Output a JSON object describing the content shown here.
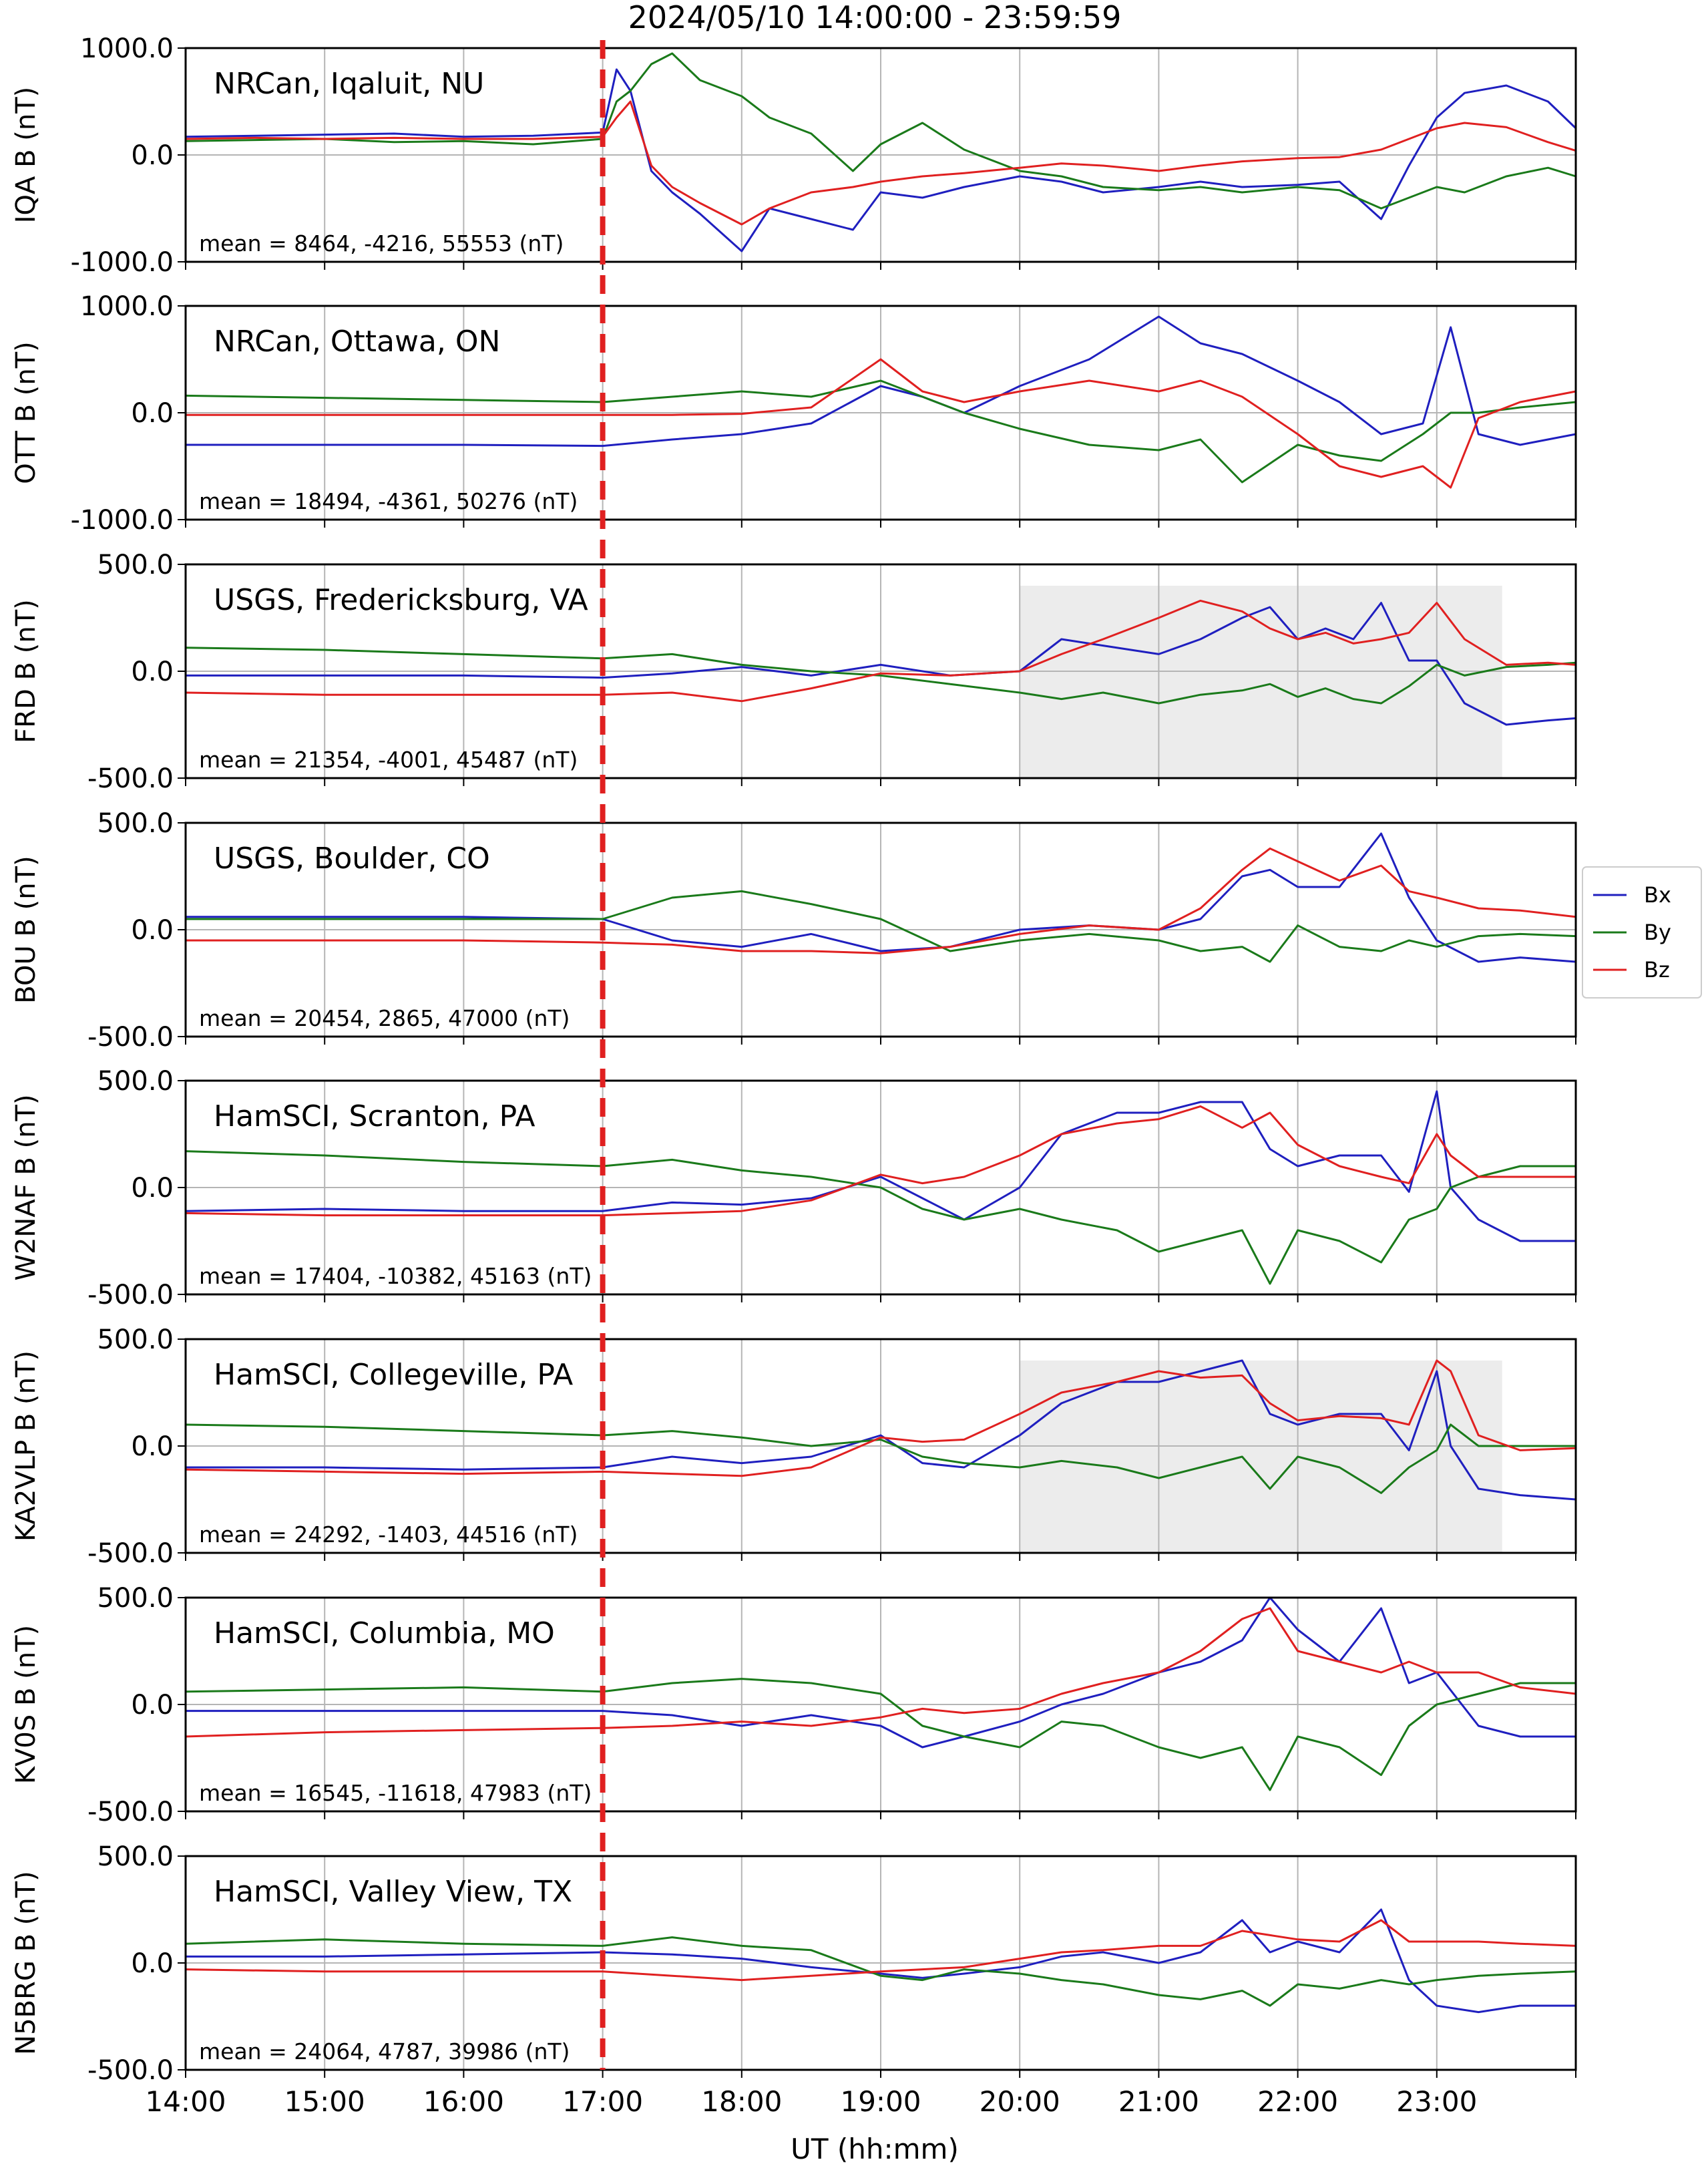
{
  "figure": {
    "title": "2024/05/10 14:00:00 - 23:59:59",
    "xlabel": "UT (hh:mm)",
    "x_tick_labels": [
      "14:00",
      "15:00",
      "16:00",
      "17:00",
      "18:00",
      "19:00",
      "20:00",
      "21:00",
      "22:00",
      "23:00"
    ]
  },
  "legend": {
    "placement": "right-middle",
    "entries": [
      {
        "label": "Bx",
        "color": "#1f1fbf"
      },
      {
        "label": "By",
        "color": "#1a7a1a"
      },
      {
        "label": "Bz",
        "color": "#e02020"
      }
    ]
  },
  "event_marker": {
    "time": "17:00",
    "color": "#e02020",
    "style": "dashed"
  },
  "chart_data": [
    {
      "type": "line",
      "station": "NRCan, Iqaluit, NU",
      "ylabel": "IQA B (nT)",
      "ylim": [
        -1000,
        1000
      ],
      "yticks": [
        "1000.0",
        "0.0",
        "-1000.0"
      ],
      "mean_text": "mean = 8464, -4216, 55553 (nT)",
      "shaded": null,
      "x": [
        14,
        14.5,
        15,
        15.5,
        16,
        16.5,
        17,
        17.1,
        17.2,
        17.35,
        17.5,
        17.7,
        18,
        18.2,
        18.5,
        18.8,
        19,
        19.3,
        19.6,
        20,
        20.3,
        20.6,
        21,
        21.3,
        21.6,
        22,
        22.3,
        22.6,
        22.8,
        23,
        23.2,
        23.5,
        23.8,
        24
      ],
      "series": [
        {
          "name": "Bx",
          "values": [
            170,
            180,
            190,
            200,
            170,
            180,
            210,
            800,
            600,
            -150,
            -350,
            -550,
            -900,
            -500,
            -600,
            -700,
            -350,
            -400,
            -300,
            -200,
            -250,
            -350,
            -300,
            -250,
            -300,
            -280,
            -250,
            -600,
            -100,
            350,
            580,
            650,
            500,
            250
          ]
        },
        {
          "name": "By",
          "values": [
            130,
            140,
            150,
            120,
            130,
            100,
            150,
            500,
            600,
            850,
            950,
            700,
            550,
            350,
            200,
            -150,
            100,
            300,
            50,
            -150,
            -200,
            -300,
            -330,
            -300,
            -350,
            -300,
            -330,
            -500,
            -400,
            -300,
            -350,
            -200,
            -120,
            -200
          ]
        },
        {
          "name": "Bz",
          "values": [
            150,
            160,
            150,
            160,
            150,
            150,
            170,
            350,
            500,
            -100,
            -300,
            -450,
            -650,
            -500,
            -350,
            -300,
            -250,
            -200,
            -170,
            -120,
            -80,
            -100,
            -150,
            -100,
            -60,
            -30,
            -20,
            50,
            150,
            250,
            300,
            260,
            120,
            40
          ]
        }
      ]
    },
    {
      "type": "line",
      "station": "NRCan, Ottawa, ON",
      "ylabel": "OTT B (nT)",
      "ylim": [
        -1000,
        1000
      ],
      "yticks": [
        "1000.0",
        "0.0",
        "-1000.0"
      ],
      "mean_text": "mean = 18494, -4361, 50276 (nT)",
      "shaded": null,
      "x": [
        14,
        15,
        16,
        17,
        17.5,
        18,
        18.5,
        19,
        19.3,
        19.6,
        20,
        20.5,
        21,
        21.3,
        21.6,
        22,
        22.3,
        22.6,
        22.9,
        23.1,
        23.3,
        23.6,
        24
      ],
      "series": [
        {
          "name": "Bx",
          "values": [
            -300,
            -300,
            -300,
            -310,
            -250,
            -200,
            -100,
            250,
            150,
            0,
            250,
            500,
            900,
            650,
            550,
            300,
            100,
            -200,
            -100,
            800,
            -200,
            -300,
            -200
          ]
        },
        {
          "name": "By",
          "values": [
            160,
            140,
            120,
            100,
            150,
            200,
            150,
            300,
            150,
            0,
            -150,
            -300,
            -350,
            -250,
            -650,
            -300,
            -400,
            -450,
            -200,
            0,
            0,
            50,
            100
          ]
        },
        {
          "name": "Bz",
          "values": [
            -20,
            -20,
            -20,
            -20,
            -20,
            -10,
            50,
            500,
            200,
            100,
            200,
            300,
            200,
            300,
            150,
            -200,
            -500,
            -600,
            -500,
            -700,
            -50,
            100,
            200
          ]
        }
      ]
    },
    {
      "type": "line",
      "station": "USGS, Fredericksburg, VA",
      "ylabel": "FRD B (nT)",
      "ylim": [
        -500,
        500
      ],
      "yticks": [
        "500.0",
        "0.0",
        "-500.0"
      ],
      "mean_text": "mean = 21354, -4001, 45487 (nT)",
      "shaded": [
        20,
        23.47
      ],
      "x": [
        14,
        15,
        16,
        17,
        17.5,
        18,
        18.5,
        19,
        19.5,
        20,
        20.3,
        20.6,
        21,
        21.3,
        21.6,
        21.8,
        22,
        22.2,
        22.4,
        22.6,
        22.8,
        23,
        23.2,
        23.5,
        23.8,
        24
      ],
      "series": [
        {
          "name": "Bx",
          "values": [
            -20,
            -20,
            -20,
            -30,
            -10,
            20,
            -20,
            30,
            -20,
            0,
            150,
            120,
            80,
            150,
            250,
            300,
            150,
            200,
            150,
            320,
            50,
            50,
            -150,
            -250,
            -230,
            -220
          ]
        },
        {
          "name": "By",
          "values": [
            110,
            100,
            80,
            60,
            80,
            30,
            0,
            -20,
            -60,
            -100,
            -130,
            -100,
            -150,
            -110,
            -90,
            -60,
            -120,
            -80,
            -130,
            -150,
            -70,
            30,
            -20,
            20,
            30,
            40
          ]
        },
        {
          "name": "Bz",
          "values": [
            -100,
            -110,
            -110,
            -110,
            -100,
            -140,
            -80,
            -10,
            -20,
            0,
            80,
            150,
            250,
            330,
            280,
            200,
            150,
            180,
            130,
            150,
            180,
            320,
            150,
            30,
            40,
            30
          ]
        }
      ]
    },
    {
      "type": "line",
      "station": "USGS, Boulder, CO",
      "ylabel": "BOU B (nT)",
      "ylim": [
        -500,
        500
      ],
      "yticks": [
        "500.0",
        "0.0",
        "-500.0"
      ],
      "mean_text": "mean = 20454, 2865, 47000 (nT)",
      "shaded": null,
      "x": [
        14,
        15,
        16,
        17,
        17.5,
        18,
        18.5,
        19,
        19.5,
        20,
        20.5,
        21,
        21.3,
        21.6,
        21.8,
        22,
        22.3,
        22.6,
        22.8,
        23,
        23.3,
        23.6,
        24
      ],
      "series": [
        {
          "name": "Bx",
          "values": [
            60,
            60,
            60,
            50,
            -50,
            -80,
            -20,
            -100,
            -80,
            0,
            20,
            0,
            50,
            250,
            280,
            200,
            200,
            450,
            150,
            -50,
            -150,
            -130,
            -150
          ]
        },
        {
          "name": "By",
          "values": [
            50,
            50,
            50,
            50,
            150,
            180,
            120,
            50,
            -100,
            -50,
            -20,
            -50,
            -100,
            -80,
            -150,
            20,
            -80,
            -100,
            -50,
            -80,
            -30,
            -20,
            -30
          ]
        },
        {
          "name": "Bz",
          "values": [
            -50,
            -50,
            -50,
            -60,
            -70,
            -100,
            -100,
            -110,
            -80,
            -20,
            20,
            0,
            100,
            280,
            380,
            320,
            230,
            300,
            180,
            150,
            100,
            90,
            60
          ]
        }
      ]
    },
    {
      "type": "line",
      "station": "HamSCI, Scranton, PA",
      "ylabel": "W2NAF B (nT)",
      "ylim": [
        -500,
        500
      ],
      "yticks": [
        "500.0",
        "0.0",
        "-500.0"
      ],
      "mean_text": "mean = 17404, -10382, 45163 (nT)",
      "shaded": null,
      "x": [
        14,
        15,
        16,
        17,
        17.5,
        18,
        18.5,
        19,
        19.3,
        19.6,
        20,
        20.3,
        20.7,
        21,
        21.3,
        21.6,
        21.8,
        22,
        22.3,
        22.6,
        22.8,
        23,
        23.1,
        23.3,
        23.6,
        24
      ],
      "series": [
        {
          "name": "Bx",
          "values": [
            -110,
            -100,
            -110,
            -110,
            -70,
            -80,
            -50,
            50,
            -50,
            -150,
            0,
            250,
            350,
            350,
            400,
            400,
            180,
            100,
            150,
            150,
            -20,
            450,
            0,
            -150,
            -250,
            -250
          ]
        },
        {
          "name": "By",
          "values": [
            170,
            150,
            120,
            100,
            130,
            80,
            50,
            0,
            -100,
            -150,
            -100,
            -150,
            -200,
            -300,
            -250,
            -200,
            -450,
            -200,
            -250,
            -350,
            -150,
            -100,
            0,
            50,
            100,
            100
          ]
        },
        {
          "name": "Bz",
          "values": [
            -120,
            -130,
            -130,
            -130,
            -120,
            -110,
            -60,
            60,
            20,
            50,
            150,
            250,
            300,
            320,
            380,
            280,
            350,
            200,
            100,
            50,
            20,
            250,
            150,
            50,
            50,
            50
          ]
        }
      ]
    },
    {
      "type": "line",
      "station": "HamSCI, Collegeville, PA",
      "ylabel": "KA2VLP B (nT)",
      "ylim": [
        -500,
        500
      ],
      "yticks": [
        "500.0",
        "0.0",
        "-500.0"
      ],
      "mean_text": "mean = 24292, -1403, 44516 (nT)",
      "shaded": [
        20,
        23.47
      ],
      "x": [
        14,
        15,
        16,
        17,
        17.5,
        18,
        18.5,
        19,
        19.3,
        19.6,
        20,
        20.3,
        20.7,
        21,
        21.3,
        21.6,
        21.8,
        22,
        22.3,
        22.6,
        22.8,
        23,
        23.1,
        23.3,
        23.6,
        24
      ],
      "series": [
        {
          "name": "Bx",
          "values": [
            -100,
            -100,
            -110,
            -100,
            -50,
            -80,
            -50,
            50,
            -80,
            -100,
            50,
            200,
            300,
            300,
            350,
            400,
            150,
            100,
            150,
            150,
            -20,
            350,
            0,
            -200,
            -230,
            -250
          ]
        },
        {
          "name": "By",
          "values": [
            100,
            90,
            70,
            50,
            70,
            40,
            0,
            30,
            -50,
            -80,
            -100,
            -70,
            -100,
            -150,
            -100,
            -50,
            -200,
            -50,
            -100,
            -220,
            -100,
            -20,
            100,
            0,
            0,
            0
          ]
        },
        {
          "name": "Bz",
          "values": [
            -110,
            -120,
            -130,
            -120,
            -130,
            -140,
            -100,
            40,
            20,
            30,
            150,
            250,
            300,
            350,
            320,
            330,
            200,
            120,
            140,
            130,
            100,
            400,
            350,
            50,
            -20,
            -10
          ]
        }
      ]
    },
    {
      "type": "line",
      "station": "HamSCI, Columbia, MO",
      "ylabel": "KV0S B (nT)",
      "ylim": [
        -500,
        500
      ],
      "yticks": [
        "500.0",
        "0.0",
        "-500.0"
      ],
      "mean_text": "mean = 16545, -11618, 47983 (nT)",
      "shaded": null,
      "x": [
        14,
        15,
        16,
        17,
        17.5,
        18,
        18.5,
        19,
        19.3,
        19.6,
        20,
        20.3,
        20.6,
        21,
        21.3,
        21.6,
        21.8,
        22,
        22.3,
        22.6,
        22.8,
        23,
        23.3,
        23.6,
        24
      ],
      "series": [
        {
          "name": "Bx",
          "values": [
            -30,
            -30,
            -30,
            -30,
            -50,
            -100,
            -50,
            -100,
            -200,
            -150,
            -80,
            0,
            50,
            150,
            200,
            300,
            500,
            350,
            200,
            450,
            100,
            150,
            -100,
            -150,
            -150
          ]
        },
        {
          "name": "By",
          "values": [
            60,
            70,
            80,
            60,
            100,
            120,
            100,
            50,
            -100,
            -150,
            -200,
            -80,
            -100,
            -200,
            -250,
            -200,
            -400,
            -150,
            -200,
            -330,
            -100,
            0,
            50,
            100,
            100
          ]
        },
        {
          "name": "Bz",
          "values": [
            -150,
            -130,
            -120,
            -110,
            -100,
            -80,
            -100,
            -60,
            -20,
            -40,
            -20,
            50,
            100,
            150,
            250,
            400,
            450,
            250,
            200,
            150,
            200,
            150,
            150,
            80,
            50
          ]
        }
      ]
    },
    {
      "type": "line",
      "station": "HamSCI, Valley View, TX",
      "ylabel": "N5BRG B (nT)",
      "ylim": [
        -500,
        500
      ],
      "yticks": [
        "500.0",
        "0.0",
        "-500.0"
      ],
      "mean_text": "mean = 24064, 4787, 39986 (nT)",
      "shaded": null,
      "x": [
        14,
        15,
        16,
        17,
        17.5,
        18,
        18.5,
        19,
        19.3,
        19.6,
        20,
        20.3,
        20.6,
        21,
        21.3,
        21.6,
        21.8,
        22,
        22.3,
        22.6,
        22.8,
        23,
        23.3,
        23.6,
        24
      ],
      "series": [
        {
          "name": "Bx",
          "values": [
            30,
            30,
            40,
            50,
            40,
            20,
            -20,
            -50,
            -70,
            -50,
            -20,
            30,
            50,
            0,
            50,
            200,
            50,
            100,
            50,
            250,
            -80,
            -200,
            -230,
            -200,
            -200
          ]
        },
        {
          "name": "By",
          "values": [
            90,
            110,
            90,
            80,
            120,
            80,
            60,
            -60,
            -80,
            -30,
            -50,
            -80,
            -100,
            -150,
            -170,
            -130,
            -200,
            -100,
            -120,
            -80,
            -100,
            -80,
            -60,
            -50,
            -40
          ]
        },
        {
          "name": "Bz",
          "values": [
            -30,
            -40,
            -40,
            -40,
            -60,
            -80,
            -60,
            -40,
            -30,
            -20,
            20,
            50,
            60,
            80,
            80,
            150,
            130,
            110,
            100,
            200,
            100,
            100,
            100,
            90,
            80
          ]
        }
      ]
    }
  ]
}
